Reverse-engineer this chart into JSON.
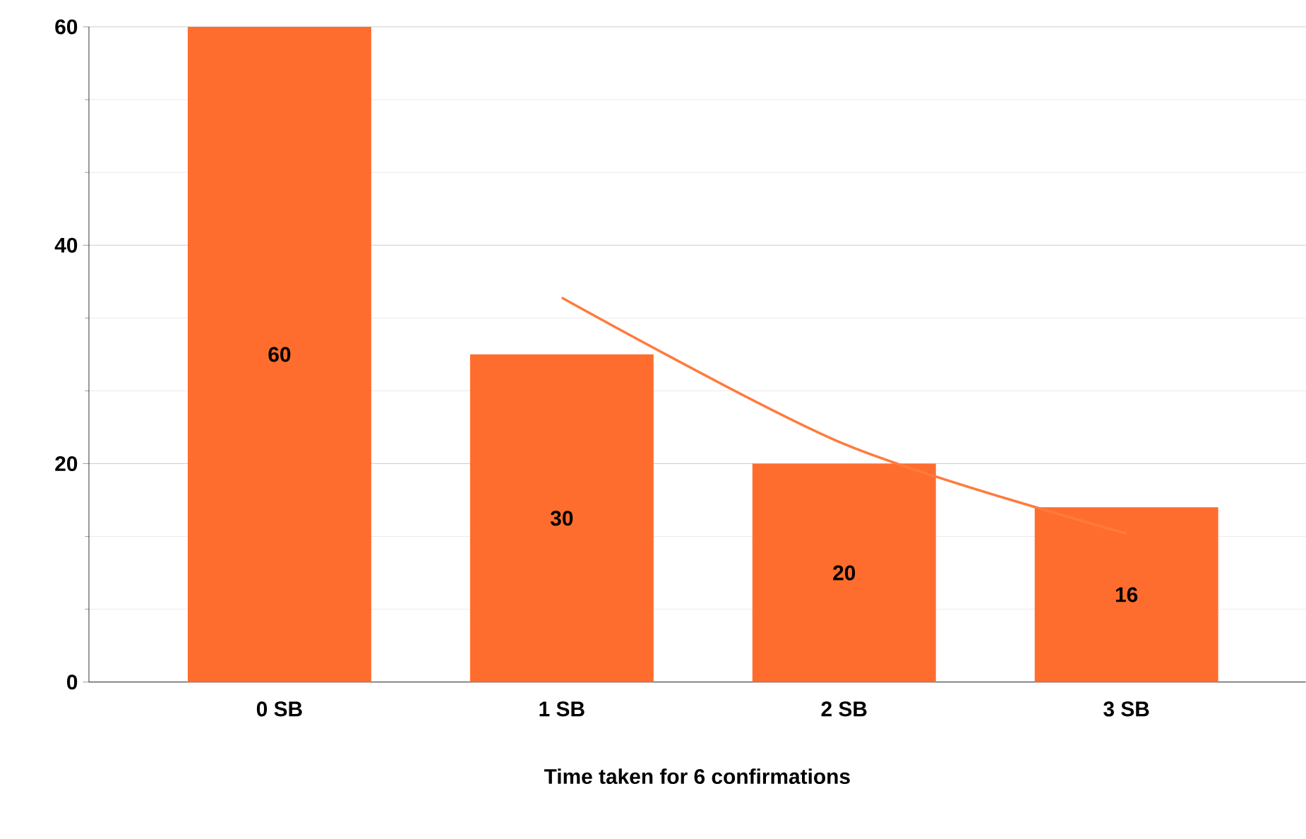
{
  "chart_data": {
    "type": "bar",
    "xlabel": "Time taken for 6 confirmations",
    "categories": [
      "0 SB",
      "1 SB",
      "2 SB",
      "3 SB"
    ],
    "series": [
      {
        "color": "#ff6d2e",
        "values": [
          60,
          30,
          20,
          16
        ],
        "value_labels": [
          "60",
          "30",
          "20",
          "16"
        ]
      },
      {
        "type": "line",
        "color": "#ff7b3d",
        "values": [
          null,
          35.2,
          21.8,
          13.6
        ]
      }
    ],
    "ylim": [
      0,
      60
    ],
    "yticks": [
      0,
      20,
      40,
      60
    ],
    "grid": "y"
  }
}
